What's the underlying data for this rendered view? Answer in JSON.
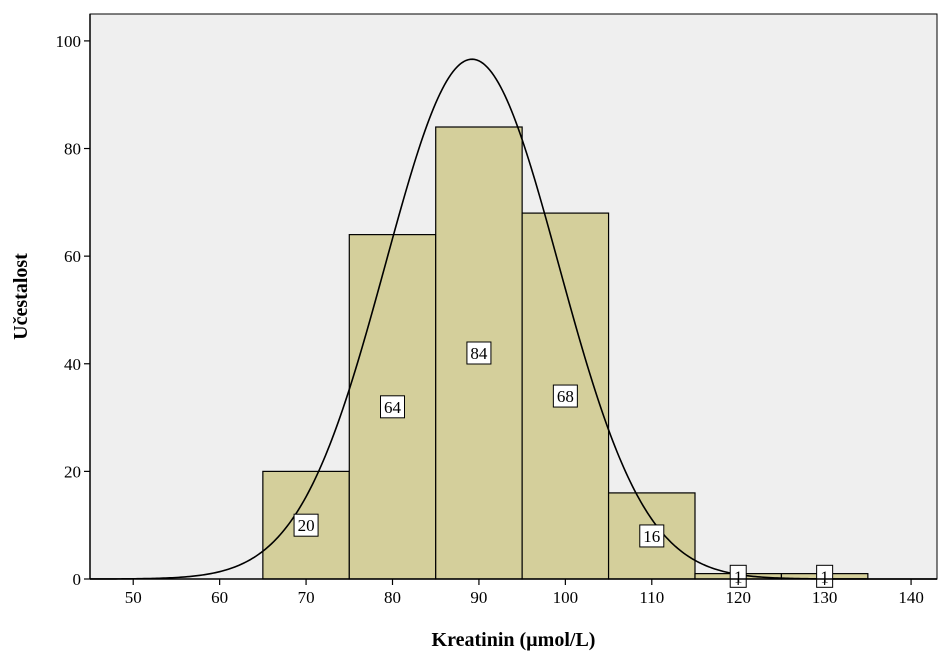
{
  "chart_data": {
    "type": "bar",
    "xlabel": "Kreatinin (µmol/L)",
    "ylabel": "Učestalost",
    "xlim": [
      45,
      143
    ],
    "ylim": [
      0,
      105
    ],
    "x_ticks": [
      "50",
      "60",
      "70",
      "80",
      "90",
      "100",
      "110",
      "120",
      "130",
      "140"
    ],
    "y_ticks": [
      "0",
      "20",
      "40",
      "60",
      "80",
      "100"
    ],
    "bins": [
      {
        "from": 65,
        "to": 75,
        "value": 20,
        "label": "20"
      },
      {
        "from": 75,
        "to": 85,
        "value": 64,
        "label": "64"
      },
      {
        "from": 85,
        "to": 95,
        "value": 84,
        "label": "84"
      },
      {
        "from": 95,
        "to": 105,
        "value": 68,
        "label": "68"
      },
      {
        "from": 105,
        "to": 115,
        "value": 16,
        "label": "16"
      },
      {
        "from": 115,
        "to": 125,
        "value": 1,
        "label": "1"
      },
      {
        "from": 125,
        "to": 135,
        "value": 1,
        "label": "1"
      }
    ],
    "normal_curve": {
      "mean": 89.2,
      "sd": 10.0,
      "peak": 96.6
    },
    "colors": {
      "plot_background": "#efefef",
      "bar_fill": "#d4cf9b",
      "bar_stroke": "#000000",
      "curve": "#000000"
    }
  }
}
